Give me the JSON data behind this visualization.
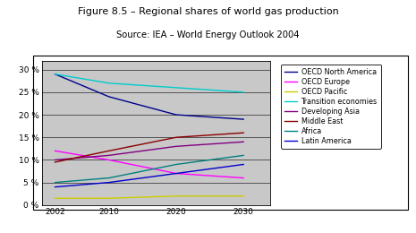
{
  "title": "Figure 8.5 – Regional shares of world gas production",
  "subtitle": "Source: IEA – World Energy Outlook 2004",
  "x": [
    2002,
    2010,
    2020,
    2030
  ],
  "series": [
    {
      "label": "OECD North America",
      "color": "#00008B",
      "values": [
        29,
        24,
        20,
        19
      ]
    },
    {
      "label": "OECD Europe",
      "color": "#FF00FF",
      "values": [
        12,
        10,
        7,
        6
      ]
    },
    {
      "label": "OECD Pacific",
      "color": "#CCCC00",
      "values": [
        1.5,
        1.5,
        2,
        2
      ]
    },
    {
      "label": "Transition economies",
      "color": "#00CCCC",
      "values": [
        29,
        27,
        26,
        25
      ]
    },
    {
      "label": "Developing Asia",
      "color": "#800080",
      "values": [
        10,
        11,
        13,
        14
      ]
    },
    {
      "label": "Middle East",
      "color": "#8B0000",
      "values": [
        9.5,
        12,
        15,
        16
      ]
    },
    {
      "label": "Africa",
      "color": "#008080",
      "values": [
        5,
        6,
        9,
        11
      ]
    },
    {
      "label": "Latin America",
      "color": "#0000CD",
      "values": [
        4,
        5,
        7,
        9
      ]
    }
  ],
  "ylim": [
    0,
    32
  ],
  "yticks": [
    0,
    5,
    10,
    15,
    20,
    25,
    30
  ],
  "ytick_labels": [
    "0 %",
    "5 %",
    "10 %",
    "15 %",
    "20 %",
    "25 %",
    "30 %"
  ],
  "plot_bg": "#C8C8C8",
  "fig_bg": "#FFFFFF",
  "title_fontsize": 8.0,
  "subtitle_fontsize": 7.2
}
